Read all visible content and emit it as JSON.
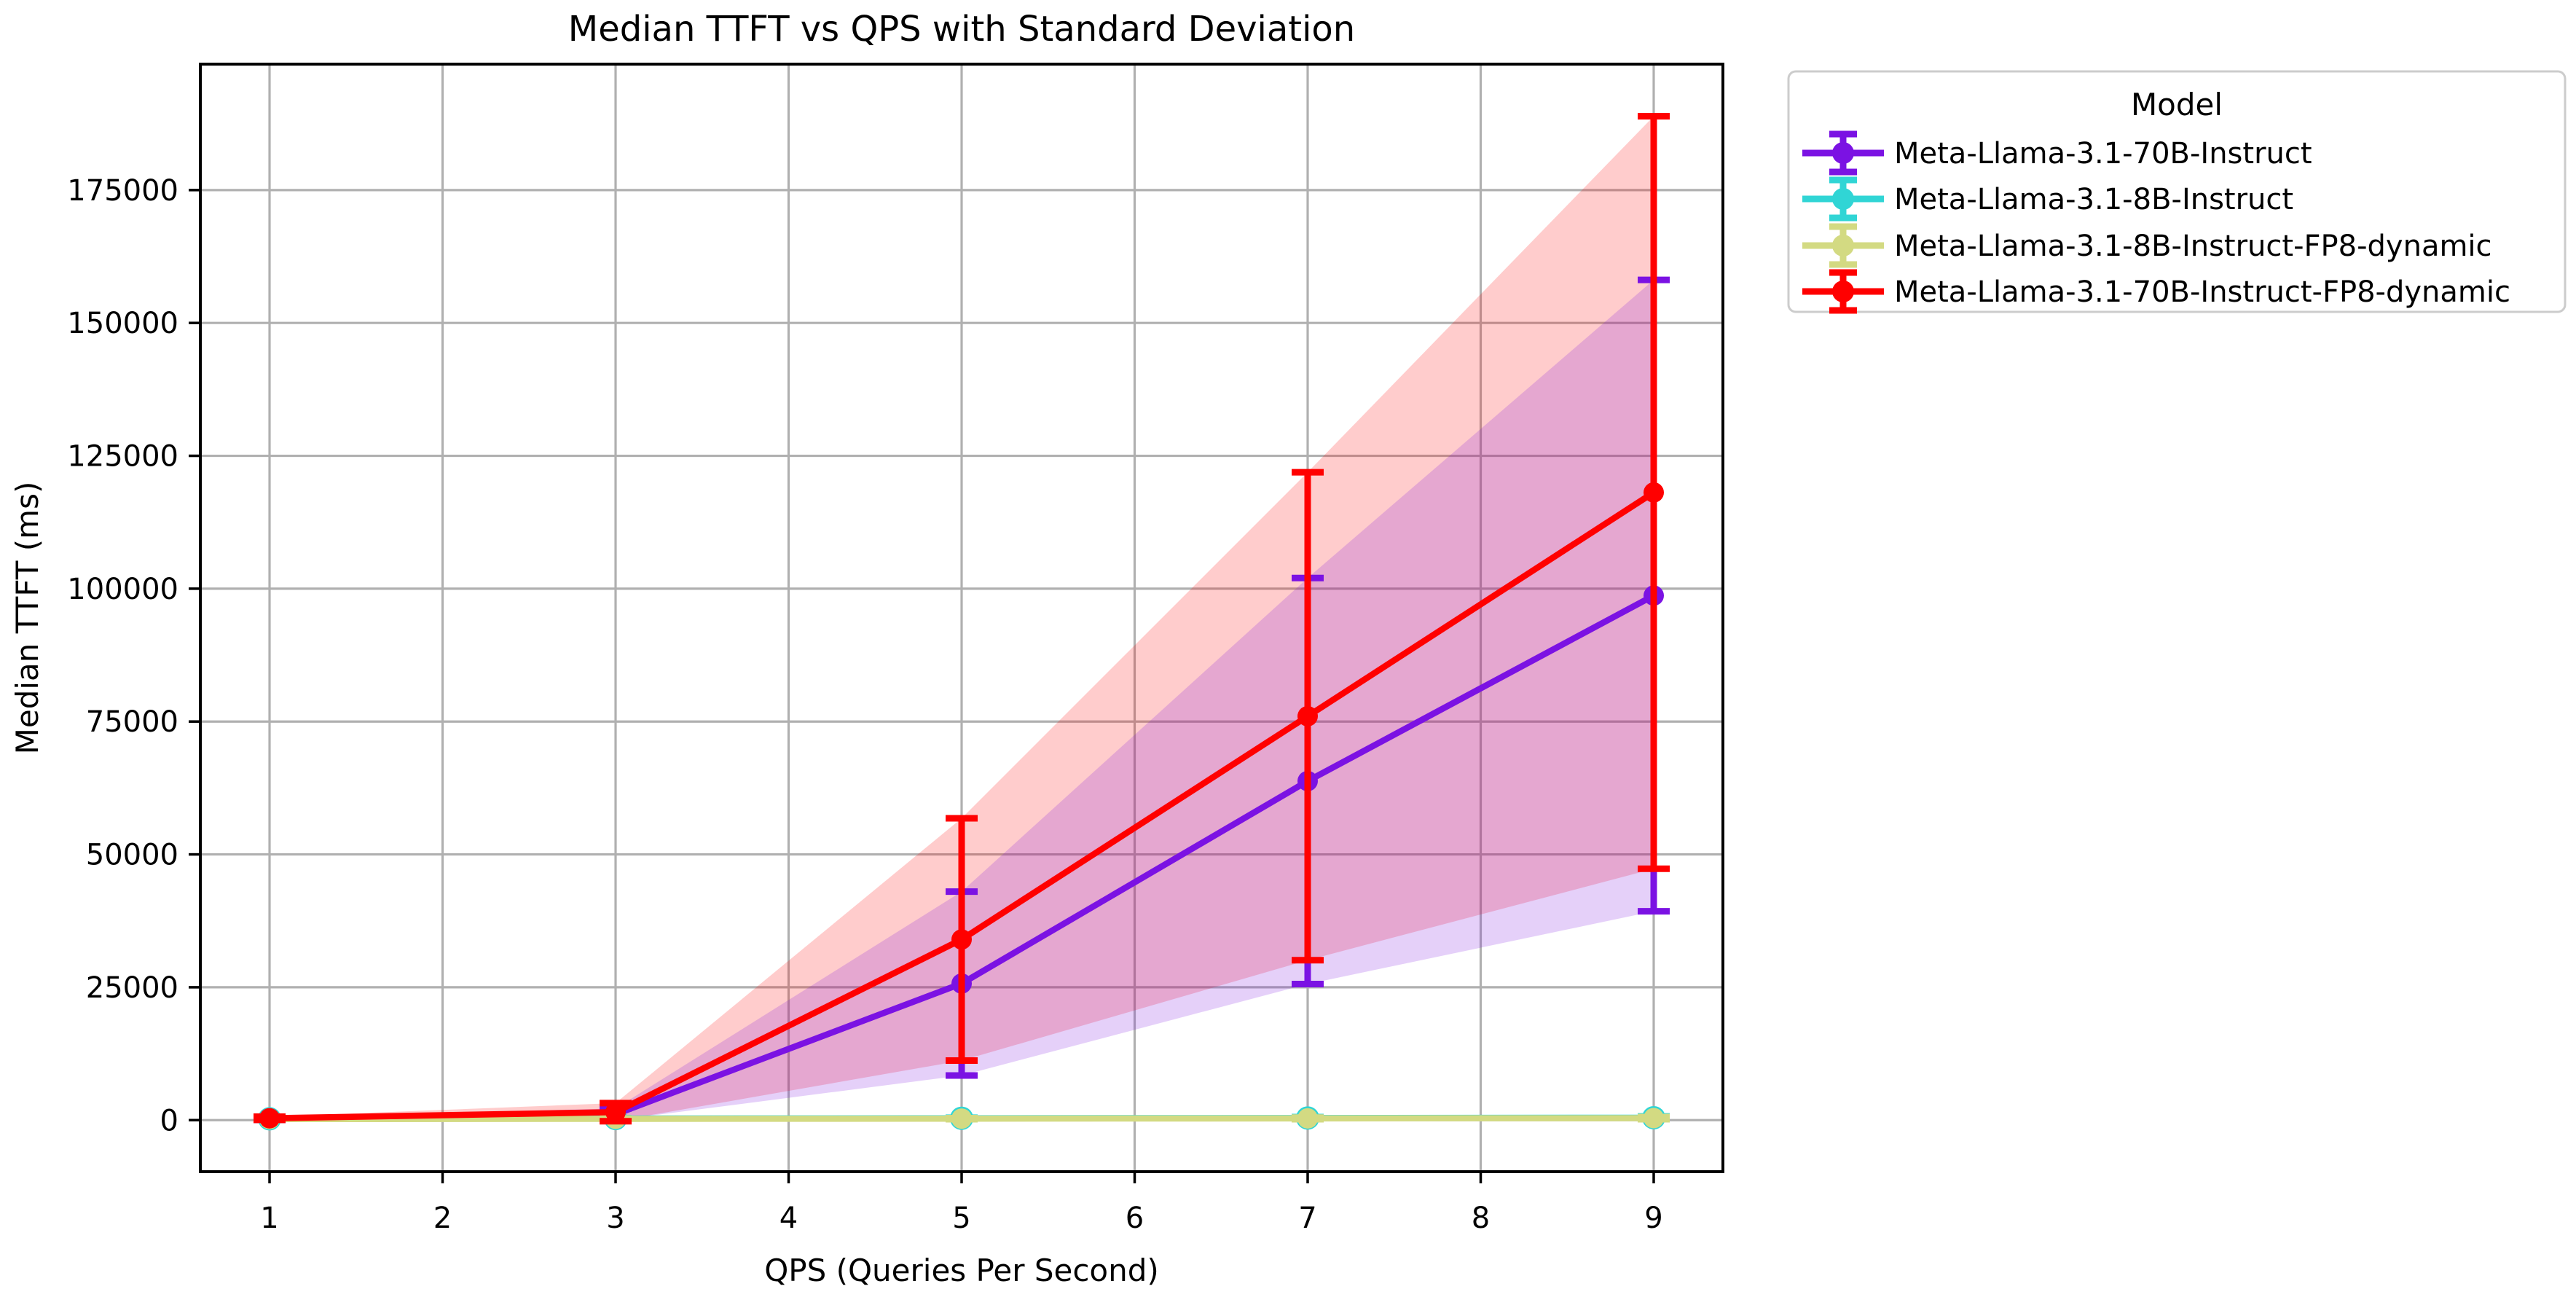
{
  "title": "Median TTFT vs QPS with Standard Deviation",
  "axes": {
    "x_label": "QPS (Queries Per Second)",
    "y_label": "Median TTFT (ms)"
  },
  "legend": {
    "title": "Model",
    "position": "outside upper right"
  },
  "colors": {
    "grid": "#b0b0b0",
    "frame": "#000000",
    "background": "#ffffff",
    "legend_border": "#cccccc"
  },
  "chart_data": {
    "type": "line",
    "x": [
      1,
      3,
      5,
      7,
      9
    ],
    "x_ticks": [
      1,
      2,
      3,
      4,
      5,
      6,
      7,
      8,
      9
    ],
    "y_ticks": [
      0,
      25000,
      50000,
      75000,
      100000,
      125000,
      150000,
      175000
    ],
    "xlim": [
      0.6,
      9.4
    ],
    "ylim": [
      -9700,
      198700
    ],
    "grid": true,
    "legend_position": "outside upper right",
    "error_bars": "vertical bars with caps at each point = ±1 standard deviation",
    "bands_note": "shaded regions = median ± std for the two 70B models (20% alpha fills)",
    "series": [
      {
        "name": "Meta-Llama-3.1-70B-Instruct",
        "color": "#7B12E3",
        "band": true,
        "median": [
          300,
          1100,
          25700,
          63800,
          98700
        ],
        "std": [
          250,
          1100,
          17300,
          38200,
          59400
        ]
      },
      {
        "name": "Meta-Llama-3.1-8B-Instruct",
        "color": "#30D5D5",
        "band": false,
        "median": [
          250,
          300,
          350,
          400,
          450
        ],
        "std": [
          60,
          80,
          120,
          180,
          250
        ]
      },
      {
        "name": "Meta-Llama-3.1-8B-Instruct-FP8-dynamic",
        "color": "#D3DA82",
        "band": false,
        "median": [
          200,
          240,
          280,
          330,
          380
        ],
        "std": [
          50,
          70,
          100,
          150,
          200
        ]
      },
      {
        "name": "Meta-Llama-3.1-70B-Instruct-FP8-dynamic",
        "color": "#FF0000",
        "band": true,
        "median": [
          350,
          1500,
          34000,
          76000,
          118100
        ],
        "std": [
          300,
          1700,
          22800,
          45900,
          70800
        ]
      }
    ]
  }
}
